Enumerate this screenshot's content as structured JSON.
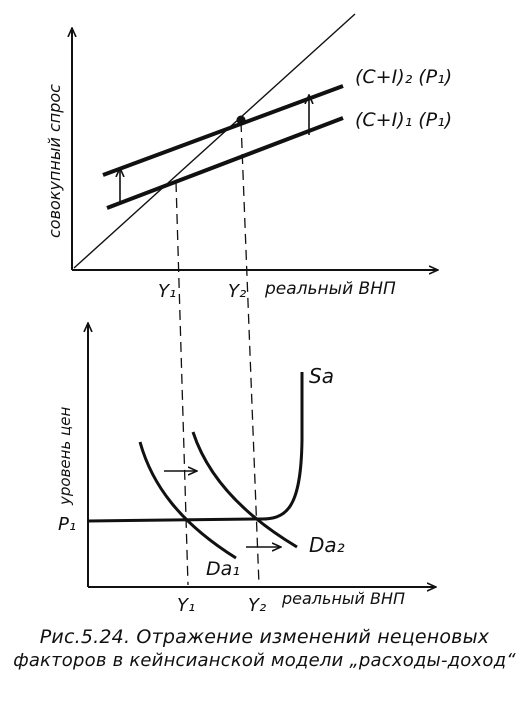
{
  "top_panel": {
    "y_axis_label": "совокупный спрос",
    "x_axis_label": "реальный ВНП",
    "line_upper": "(C+I)₂ (P₁)",
    "line_lower": "(C+I)₁ (P₁)",
    "tick_y1": "Y₁",
    "tick_y2": "Y₂"
  },
  "bottom_panel": {
    "y_axis_label": "уровень цен",
    "x_axis_label": "реальный ВНП",
    "price_level": "P₁",
    "supply_label": "Sa",
    "demand_1": "Da₁",
    "demand_2": "Da₂",
    "tick_y1": "Y₁",
    "tick_y2": "Y₂"
  },
  "caption": {
    "line1": "Рис.5.24.  Отражение изменений неценовых",
    "line2": "факторов в кейнсианской модели „расходы-доход“"
  }
}
